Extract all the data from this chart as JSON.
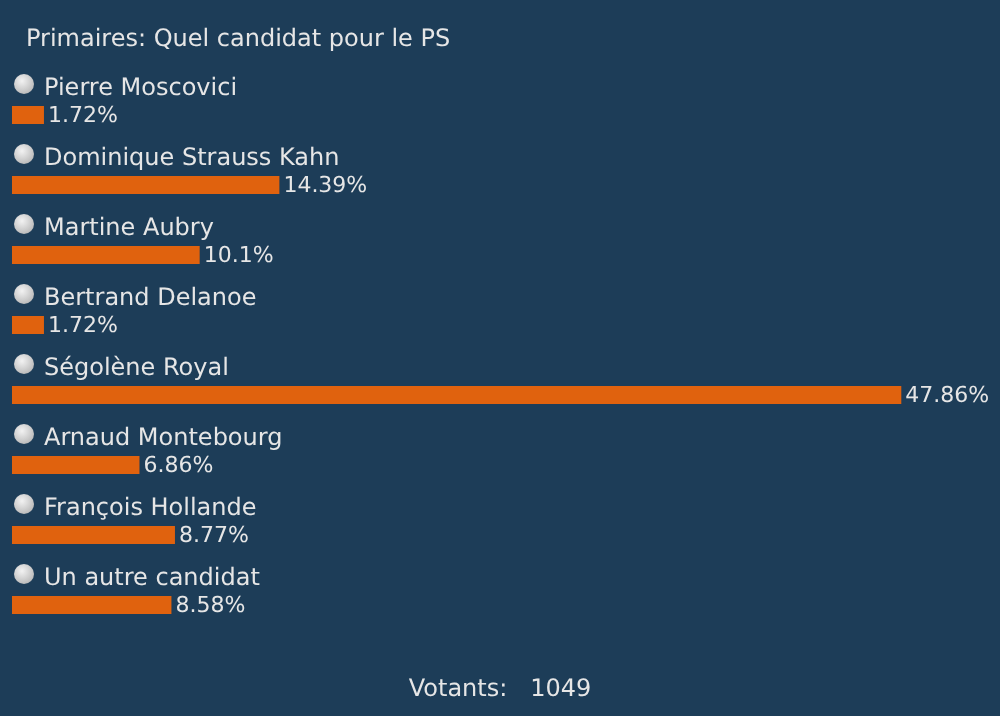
{
  "chart_data": {
    "type": "bar",
    "orientation": "horizontal",
    "title": "Primaires: Quel candidat pour le PS",
    "categories": [
      "Pierre Moscovici",
      "Dominique Strauss Kahn",
      "Martine Aubry",
      "Bertrand Delanoe",
      "Ségolène Royal",
      "Arnaud Montebourg",
      "François Hollande",
      "Un autre candidat"
    ],
    "values": [
      1.72,
      14.39,
      10.1,
      1.72,
      47.86,
      6.86,
      8.77,
      8.58
    ],
    "value_labels": [
      "1.72%",
      "14.39%",
      "10.1%",
      "1.72%",
      "47.86%",
      "6.86%",
      "8.77%",
      "8.58%"
    ],
    "color": "#e0620e",
    "annotations": [
      "Votants:   1049"
    ]
  }
}
